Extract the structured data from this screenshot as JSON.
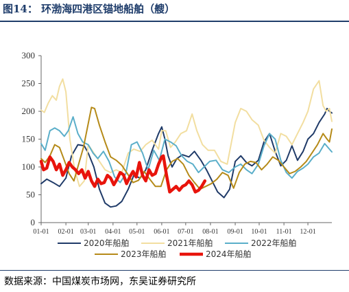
{
  "header": {
    "title": "图14：  环渤海四港区锚地船舶（艘）"
  },
  "footer": {
    "source": "数据来源：中国煤炭市场网，东吴证券研究所"
  },
  "chart_data": {
    "type": "line",
    "title": "环渤海四港区锚地船舶（艘）",
    "xlabel": "",
    "ylabel": "",
    "ylim": [
      0,
      300
    ],
    "yticks": [
      0,
      50,
      100,
      150,
      200,
      250,
      300
    ],
    "x_domain": [
      "01-01",
      "12-31"
    ],
    "xticks": [
      "01-01",
      "02-01",
      "03-01",
      "04-01",
      "05-01",
      "06-01",
      "07-01",
      "08-01",
      "09-01",
      "10-01",
      "11-01",
      "12-01"
    ],
    "grid": false,
    "legend_position": "bottom",
    "series": [
      {
        "name": "2020年船舶",
        "color": "#1f3a68",
        "width": 2,
        "x": [
          "01-01",
          "01-08",
          "01-16",
          "01-24",
          "02-01",
          "02-08",
          "02-16",
          "02-24",
          "03-01",
          "03-08",
          "03-15",
          "03-22",
          "03-29",
          "04-05",
          "04-12",
          "04-20",
          "04-27",
          "05-05",
          "05-12",
          "05-20",
          "05-28",
          "06-01",
          "06-05",
          "06-09",
          "06-14",
          "06-20",
          "06-27",
          "07-05",
          "07-12",
          "07-20",
          "07-27",
          "08-03",
          "08-10",
          "08-18",
          "08-25",
          "09-01",
          "09-08",
          "09-15",
          "09-22",
          "09-30",
          "10-07",
          "10-14",
          "10-21",
          "10-28",
          "11-04",
          "11-11",
          "11-18",
          "11-25",
          "12-01",
          "12-08",
          "12-15",
          "12-22",
          "12-25",
          "12-28",
          "12-31"
        ],
        "y": [
          70,
          78,
          72,
          65,
          80,
          120,
          140,
          138,
          125,
          100,
          60,
          35,
          28,
          30,
          38,
          60,
          85,
          80,
          95,
          130,
          160,
          172,
          150,
          120,
          100,
          115,
          122,
          118,
          128,
          112,
          95,
          75,
          55,
          45,
          60,
          110,
          120,
          108,
          102,
          112,
          145,
          160,
          128,
          102,
          112,
          138,
          112,
          128,
          150,
          160,
          180,
          195,
          205,
          200,
          197
        ]
      },
      {
        "name": "2021年船舶",
        "color": "#f2dea0",
        "width": 2,
        "x": [
          "01-01",
          "01-05",
          "01-10",
          "01-15",
          "01-20",
          "01-24",
          "01-28",
          "02-01",
          "02-06",
          "02-12",
          "02-18",
          "02-24",
          "03-01",
          "03-08",
          "03-15",
          "03-22",
          "03-29",
          "04-05",
          "04-12",
          "04-20",
          "04-27",
          "05-05",
          "05-12",
          "05-20",
          "05-28",
          "06-01",
          "06-06",
          "06-12",
          "06-18",
          "06-25",
          "07-02",
          "07-09",
          "07-15",
          "07-22",
          "07-29",
          "08-06",
          "08-14",
          "08-22",
          "09-01",
          "09-08",
          "09-15",
          "09-22",
          "09-30",
          "10-07",
          "10-14",
          "10-21",
          "10-28",
          "11-04",
          "11-11",
          "11-18",
          "11-25",
          "12-01",
          "12-08",
          "12-15",
          "12-20",
          "12-24",
          "12-28",
          "12-31"
        ],
        "y": [
          202,
          198,
          215,
          228,
          220,
          245,
          258,
          235,
          150,
          95,
          65,
          75,
          140,
          125,
          110,
          95,
          90,
          95,
          90,
          125,
          132,
          128,
          140,
          148,
          132,
          165,
          165,
          135,
          145,
          160,
          165,
          195,
          165,
          140,
          130,
          130,
          110,
          105,
          180,
          205,
          200,
          185,
          175,
          148,
          135,
          125,
          160,
          155,
          140,
          160,
          180,
          200,
          240,
          255,
          210,
          200,
          205,
          182
        ]
      },
      {
        "name": "2022年船舶",
        "color": "#5aaec9",
        "width": 2,
        "x": [
          "01-01",
          "01-06",
          "01-12",
          "01-18",
          "01-24",
          "01-30",
          "02-04",
          "02-10",
          "02-16",
          "02-22",
          "03-01",
          "03-07",
          "03-13",
          "03-20",
          "03-27",
          "04-03",
          "04-10",
          "04-17",
          "04-24",
          "05-01",
          "05-08",
          "05-15",
          "05-22",
          "05-29",
          "06-05",
          "06-12",
          "06-19",
          "06-26",
          "07-03",
          "07-10",
          "07-17",
          "07-24",
          "07-31",
          "08-08",
          "08-16",
          "08-24",
          "09-01",
          "09-08",
          "09-15",
          "09-22",
          "09-30",
          "10-07",
          "10-14",
          "10-21",
          "10-28",
          "11-04",
          "11-11",
          "11-18",
          "11-25",
          "12-01",
          "12-08",
          "12-15",
          "12-22",
          "12-28",
          "12-31"
        ],
        "y": [
          142,
          130,
          165,
          170,
          165,
          155,
          165,
          190,
          160,
          145,
          140,
          125,
          115,
          128,
          110,
          82,
          72,
          88,
          140,
          145,
          125,
          95,
          130,
          112,
          150,
          145,
          138,
          120,
          110,
          105,
          90,
          100,
          110,
          112,
          95,
          90,
          100,
          105,
          95,
          88,
          105,
          138,
          160,
          150,
          112,
          90,
          80,
          92,
          98,
          105,
          118,
          125,
          142,
          132,
          127
        ]
      },
      {
        "name": "2023年船舶",
        "color": "#b58a18",
        "width": 2,
        "x": [
          "01-01",
          "01-06",
          "01-12",
          "01-18",
          "01-24",
          "01-30",
          "02-05",
          "02-11",
          "02-17",
          "02-23",
          "03-01",
          "03-05",
          "03-09",
          "03-15",
          "03-22",
          "03-29",
          "04-05",
          "04-12",
          "04-19",
          "04-26",
          "05-03",
          "05-10",
          "05-17",
          "05-24",
          "05-31",
          "06-07",
          "06-14",
          "06-21",
          "06-28",
          "07-05",
          "07-12",
          "07-19",
          "07-26",
          "08-02",
          "08-09",
          "08-16",
          "08-23",
          "08-30",
          "09-06",
          "09-13",
          "09-20",
          "09-27",
          "10-04",
          "10-11",
          "10-18",
          "10-25",
          "11-01",
          "11-08",
          "11-15",
          "11-22",
          "11-29",
          "12-06",
          "12-13",
          "12-20",
          "12-25",
          "12-28",
          "12-31"
        ],
        "y": [
          115,
          108,
          120,
          140,
          135,
          112,
          88,
          75,
          105,
          135,
          178,
          207,
          205,
          175,
          145,
          118,
          112,
          103,
          88,
          72,
          76,
          92,
          78,
          65,
          65,
          95,
          110,
          115,
          105,
          85,
          72,
          60,
          65,
          70,
          78,
          90,
          85,
          62,
          90,
          105,
          110,
          108,
          95,
          105,
          118,
          112,
          100,
          88,
          92,
          100,
          110,
          125,
          140,
          160,
          150,
          145,
          168
        ]
      },
      {
        "name": "2024年船舶",
        "color": "#e8140c",
        "width": 4.5,
        "x": [
          "01-01",
          "01-04",
          "01-08",
          "01-12",
          "01-16",
          "01-20",
          "01-24",
          "01-28",
          "02-01",
          "02-05",
          "02-09",
          "02-13",
          "02-17",
          "02-21",
          "02-25",
          "03-01",
          "03-05",
          "03-09",
          "03-13",
          "03-17",
          "03-21",
          "03-25",
          "03-29",
          "04-02",
          "04-06",
          "04-10",
          "04-14",
          "04-18",
          "04-22",
          "04-26",
          "04-30",
          "05-04",
          "05-08",
          "05-12",
          "05-16",
          "05-20",
          "05-24",
          "05-28",
          "06-01",
          "06-03",
          "06-07",
          "06-11",
          "06-15",
          "06-19",
          "06-23",
          "06-27",
          "07-01",
          "07-05",
          "07-09",
          "07-13",
          "07-17",
          "07-21",
          "07-25"
        ],
        "y": [
          110,
          95,
          98,
          118,
          110,
          95,
          105,
          85,
          95,
          108,
          100,
          95,
          88,
          95,
          80,
          92,
          75,
          65,
          78,
          70,
          72,
          85,
          80,
          68,
          78,
          90,
          86,
          70,
          82,
          92,
          82,
          108,
          85,
          75,
          95,
          85,
          88,
          105,
          118,
          120,
          85,
          55,
          60,
          65,
          58,
          65,
          68,
          75,
          68,
          55,
          58,
          65,
          75
        ]
      }
    ]
  }
}
